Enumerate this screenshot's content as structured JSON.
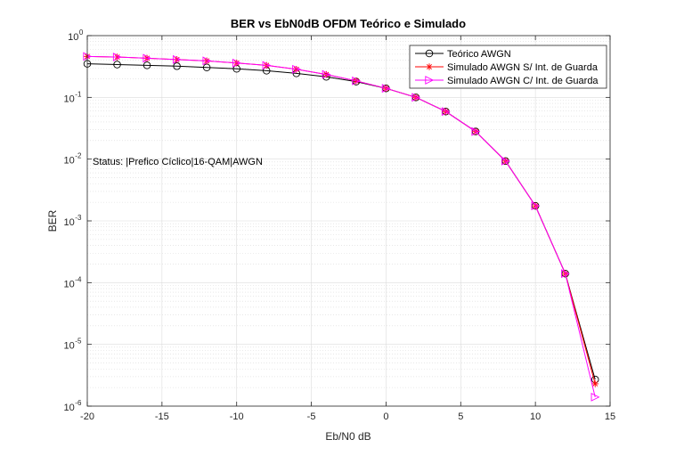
{
  "chart_data": {
    "type": "line",
    "title": "BER vs EbN0dB OFDM Teórico e Simulado",
    "xlabel": "Eb/N0 dB",
    "ylabel": "BER",
    "xlim": [
      -20,
      15
    ],
    "ylim": [
      1e-06,
      1
    ],
    "yscale": "log",
    "grid": true,
    "minor_grid": true,
    "x_ticks": [
      "-20",
      "-15",
      "-10",
      "-5",
      "0",
      "5",
      "10",
      "15"
    ],
    "y_ticks": [
      {
        "base": "10",
        "exp": "0"
      },
      {
        "base": "10",
        "exp": "-1"
      },
      {
        "base": "10",
        "exp": "-2"
      },
      {
        "base": "10",
        "exp": "-3"
      },
      {
        "base": "10",
        "exp": "-4"
      },
      {
        "base": "10",
        "exp": "-5"
      },
      {
        "base": "10",
        "exp": "-6"
      }
    ],
    "legend_position": "top-right",
    "annotation": "Status: |Prefico Cíclico|16-QAM|AWGN",
    "x": [
      -20,
      -18,
      -16,
      -14,
      -12,
      -10,
      -8,
      -6,
      -4,
      -2,
      0,
      2,
      4,
      6,
      8,
      10,
      12,
      14
    ],
    "series": [
      {
        "name": "Teórico AWGN",
        "color": "#000000",
        "marker": "circle",
        "values": [
          0.35,
          0.34,
          0.33,
          0.32,
          0.305,
          0.29,
          0.27,
          0.245,
          0.215,
          0.18,
          0.14,
          0.1,
          0.059,
          0.028,
          0.0093,
          0.00175,
          0.00014,
          2.7e-06
        ]
      },
      {
        "name": "Simulado AWGN S/ Int. de Guarda",
        "color": "#ff0000",
        "marker": "asterisk",
        "values": [
          0.46,
          0.45,
          0.43,
          0.41,
          0.39,
          0.36,
          0.33,
          0.285,
          0.235,
          0.185,
          0.14,
          0.1,
          0.059,
          0.028,
          0.0093,
          0.00175,
          0.00014,
          2.3e-06
        ]
      },
      {
        "name": "Simulado AWGN C/ Int. de Guarda",
        "color": "#ff00ff",
        "marker": "triangle-right",
        "values": [
          0.46,
          0.45,
          0.43,
          0.41,
          0.39,
          0.36,
          0.33,
          0.285,
          0.235,
          0.185,
          0.14,
          0.1,
          0.059,
          0.028,
          0.0093,
          0.00175,
          0.00014,
          1.4e-06
        ]
      }
    ]
  }
}
